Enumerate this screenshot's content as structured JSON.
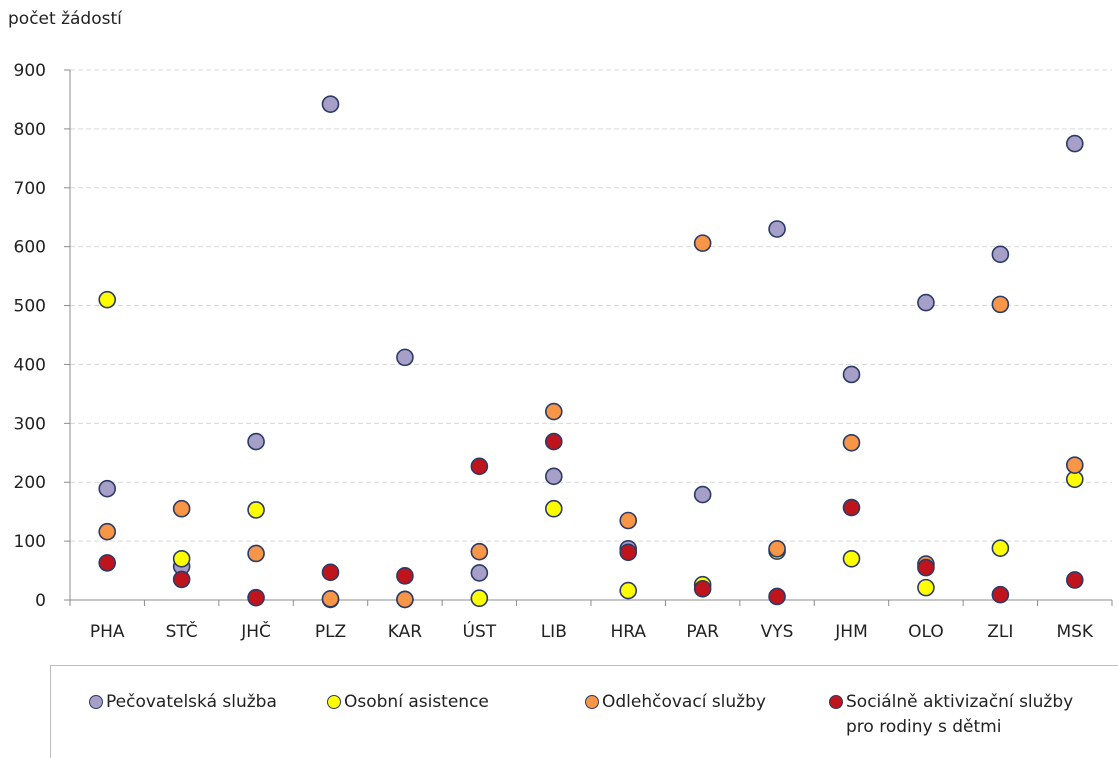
{
  "chart_data": {
    "type": "scatter",
    "ylabel": "počet žádostí",
    "xlabel": "",
    "ylim": [
      0,
      900
    ],
    "yticks": [
      0,
      100,
      200,
      300,
      400,
      500,
      600,
      700,
      800,
      900
    ],
    "grid": true,
    "legend_position": "bottom",
    "categories": [
      "PHA",
      "STČ",
      "JHČ",
      "PLZ",
      "KAR",
      "ÚST",
      "LIB",
      "HRA",
      "PAR",
      "VYS",
      "JHM",
      "OLO",
      "ZLI",
      "MSK"
    ],
    "series": [
      {
        "name": "Pečovatelská služba",
        "color": "#a69fc8",
        "values": [
          189,
          57,
          269,
          842,
          412,
          46,
          210,
          87,
          179,
          630,
          383,
          505,
          587,
          775
        ]
      },
      {
        "name": "Osobní asistence",
        "color": "#ffff00",
        "values": [
          510,
          70,
          153,
          1,
          1,
          3,
          155,
          16,
          26,
          83,
          70,
          21,
          88,
          205
        ]
      },
      {
        "name": "Odlehčovací služby",
        "color": "#f79646",
        "values": [
          116,
          155,
          79,
          2,
          1,
          82,
          320,
          135,
          606,
          87,
          267,
          61,
          502,
          229
        ]
      },
      {
        "name": "Sociálně aktivizační služby\npro rodiny s dětmi",
        "color": "#c0141d",
        "values": [
          63,
          35,
          4,
          47,
          41,
          227,
          269,
          81,
          19,
          6,
          157,
          55,
          9,
          34
        ]
      }
    ]
  }
}
